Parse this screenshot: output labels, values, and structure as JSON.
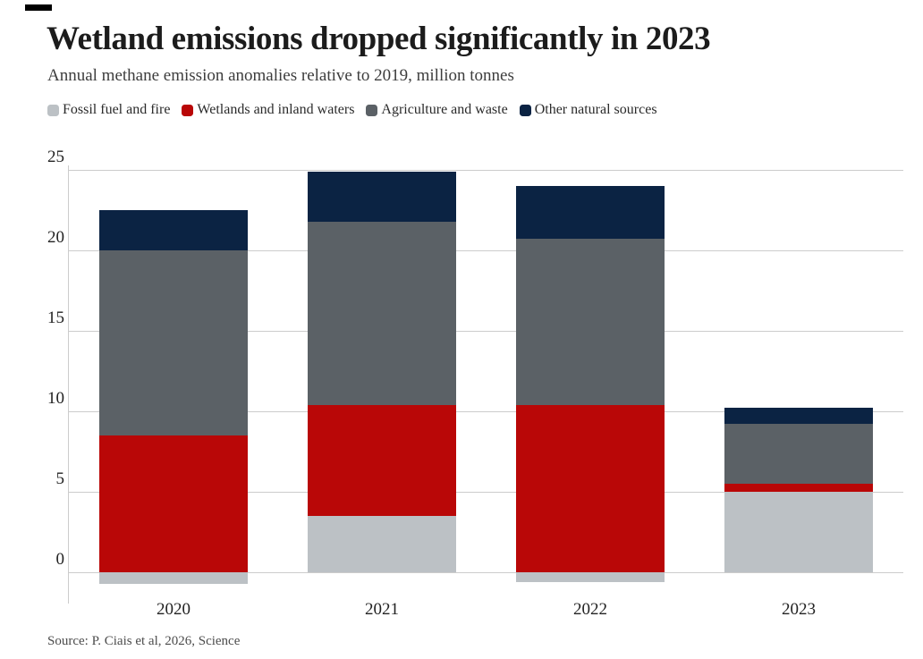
{
  "chart_data": {
    "type": "bar",
    "stacked": true,
    "title": "Wetland emissions dropped significantly in 2023",
    "subtitle": "Annual methane emission anomalies relative to 2019, million tonnes",
    "categories": [
      "2020",
      "2021",
      "2022",
      "2023"
    ],
    "series": [
      {
        "name": "Fossil fuel and fire",
        "color": "#bcc1c5",
        "values": [
          -0.7,
          3.5,
          -0.6,
          5.0
        ]
      },
      {
        "name": "Wetlands and inland waters",
        "color": "#b90707",
        "values": [
          8.5,
          6.9,
          10.4,
          0.5
        ]
      },
      {
        "name": "Agriculture and waste",
        "color": "#5b6166",
        "values": [
          11.5,
          11.4,
          10.3,
          3.7
        ]
      },
      {
        "name": "Other natural sources",
        "color": "#0b2343",
        "values": [
          2.5,
          3.1,
          3.3,
          1.0
        ]
      }
    ],
    "totals": [
      22.5,
      24.9,
      24.0,
      10.2
    ],
    "ylabel": "",
    "xlabel": "",
    "yticks": [
      0,
      5,
      10,
      15,
      20,
      25
    ],
    "ylim": [
      -1.5,
      25.5
    ],
    "grid": true,
    "gridline_color": "#cccccc",
    "legend_position": "top",
    "source": "Source: P. Ciais et al, 2026, Science"
  }
}
